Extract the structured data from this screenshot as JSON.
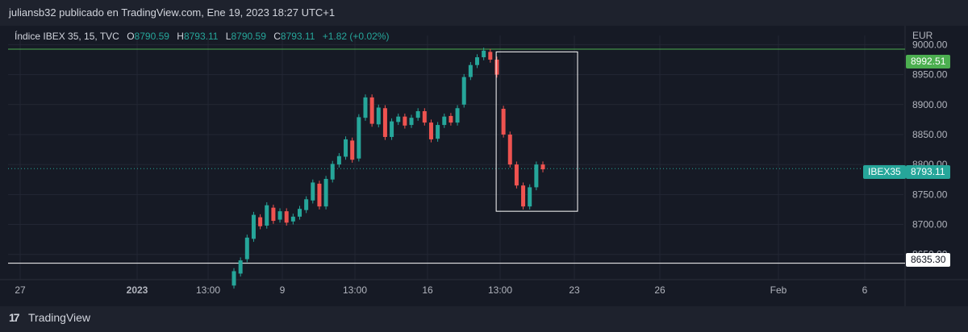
{
  "header": {
    "published": "juliansb32 publicado en TradingView.com, Ene 19, 2023 18:27 UTC+1"
  },
  "legend": {
    "symbol": "Índice IBEX 35, 15, TVC",
    "o_label": "O",
    "o_value": "8790.59",
    "h_label": "H",
    "h_value": "8793.11",
    "l_label": "L",
    "l_value": "8790.59",
    "c_label": "C",
    "c_value": "8793.11",
    "change": "+1.82 (+0.02%)"
  },
  "currency": "EUR",
  "brand": "TradingView",
  "colors": {
    "up": "#26a69a",
    "down": "#ef5350",
    "resistance": "#4caf50",
    "support": "#ffffff",
    "background": "#161a25"
  },
  "chart_data": {
    "type": "candlestick",
    "symbol": "IBEX35",
    "timeframe": "15",
    "ylim": [
      8620,
      9010
    ],
    "y_ticks": [
      8650,
      8700,
      8750,
      8800,
      8850,
      8900,
      8950,
      9000
    ],
    "y_tick_labels": [
      "8650.00",
      "8700.00",
      "8750.00",
      "8800.00",
      "8850.00",
      "8900.00",
      "8950.00",
      "9000.00"
    ],
    "x_ticks": [
      "27",
      "2023",
      "13:00",
      "9",
      "13:00",
      "16",
      "13:00",
      "23",
      "26",
      "Feb",
      "6"
    ],
    "last_price": 8793.11,
    "last_price_label": "8793.11",
    "symbol_tag": "IBEX35",
    "resistance": 8992.51,
    "resistance_label": "8992.51",
    "support": 8635.3,
    "support_label": "8635.30",
    "highlight_box": {
      "price_top": 8988,
      "price_bottom": 8722
    },
    "series": [
      [
        8598,
        8622
      ],
      [
        8618,
        8640
      ],
      [
        8642,
        8678
      ],
      [
        8676,
        8716
      ],
      [
        8712,
        8697
      ],
      [
        8698,
        8732
      ],
      [
        8728,
        8706
      ],
      [
        8708,
        8722
      ],
      [
        8722,
        8703
      ],
      [
        8705,
        8713
      ],
      [
        8713,
        8726
      ],
      [
        8724,
        8742
      ],
      [
        8740,
        8770
      ],
      [
        8768,
        8730
      ],
      [
        8730,
        8776
      ],
      [
        8775,
        8801
      ],
      [
        8800,
        8814
      ],
      [
        8813,
        8842
      ],
      [
        8840,
        8808
      ],
      [
        8810,
        8879
      ],
      [
        8878,
        8912
      ],
      [
        8912,
        8868
      ],
      [
        8867,
        8895
      ],
      [
        8894,
        8846
      ],
      [
        8846,
        8872
      ],
      [
        8871,
        8880
      ],
      [
        8880,
        8865
      ],
      [
        8866,
        8878
      ],
      [
        8878,
        8889
      ],
      [
        8889,
        8870
      ],
      [
        8870,
        8842
      ],
      [
        8843,
        8866
      ],
      [
        8866,
        8880
      ],
      [
        8881,
        8870
      ],
      [
        8870,
        8894
      ],
      [
        8900,
        8946
      ],
      [
        8946,
        8966
      ],
      [
        8966,
        8979
      ],
      [
        8979,
        8990
      ],
      [
        8988,
        8975
      ],
      [
        8975,
        8950
      ],
      [
        8893,
        8850
      ],
      [
        8850,
        8800
      ],
      [
        8800,
        8765
      ],
      [
        8765,
        8730
      ],
      [
        8730,
        8762
      ],
      [
        8762,
        8800
      ],
      [
        8800,
        8792
      ]
    ]
  }
}
